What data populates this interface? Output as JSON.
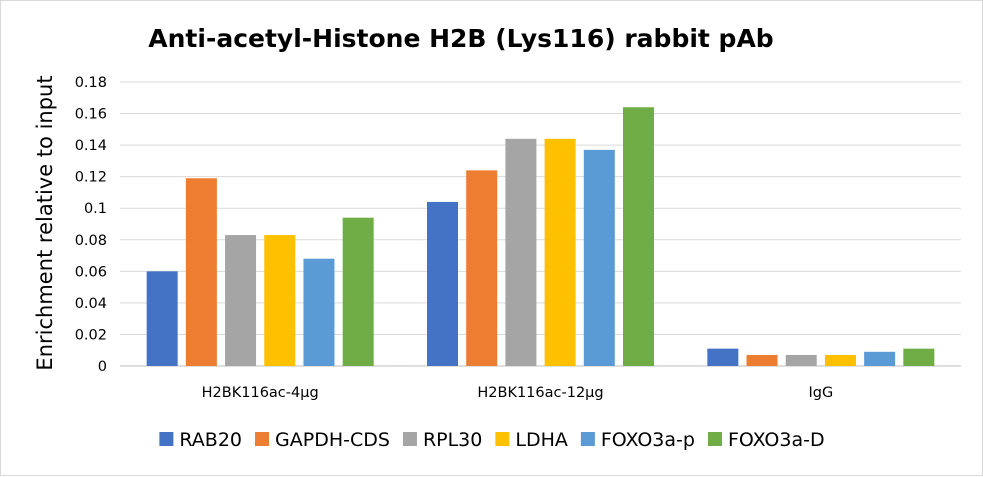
{
  "chart_data": {
    "type": "bar",
    "title": "Anti-acetyl-Histone H2B (Lys116) rabbit pAb",
    "xlabel": "",
    "ylabel": "Enrichment relative to input",
    "categories": [
      "H2BK116ac-4μg",
      "H2BK116ac-12μg",
      "IgG"
    ],
    "ylim": [
      0,
      0.18
    ],
    "yticks": [
      "0",
      "0.02",
      "0.04",
      "0.06",
      "0.08",
      "0.1",
      "0.12",
      "0.14",
      "0.16",
      "0.18"
    ],
    "grid": true,
    "legend_position": "bottom",
    "series": [
      {
        "name": "RAB20",
        "color": "#4472C4",
        "values": [
          0.06,
          0.104,
          0.011
        ]
      },
      {
        "name": "GAPDH-CDS",
        "color": "#ED7D31",
        "values": [
          0.119,
          0.124,
          0.007
        ]
      },
      {
        "name": "RPL30",
        "color": "#A5A5A5",
        "values": [
          0.083,
          0.144,
          0.007
        ]
      },
      {
        "name": "LDHA",
        "color": "#FFC000",
        "values": [
          0.083,
          0.144,
          0.007
        ]
      },
      {
        "name": "FOXO3a-p",
        "color": "#5B9BD5",
        "values": [
          0.068,
          0.137,
          0.009
        ]
      },
      {
        "name": "FOXO3a-D",
        "color": "#70AD47",
        "values": [
          0.094,
          0.164,
          0.011
        ]
      }
    ]
  }
}
